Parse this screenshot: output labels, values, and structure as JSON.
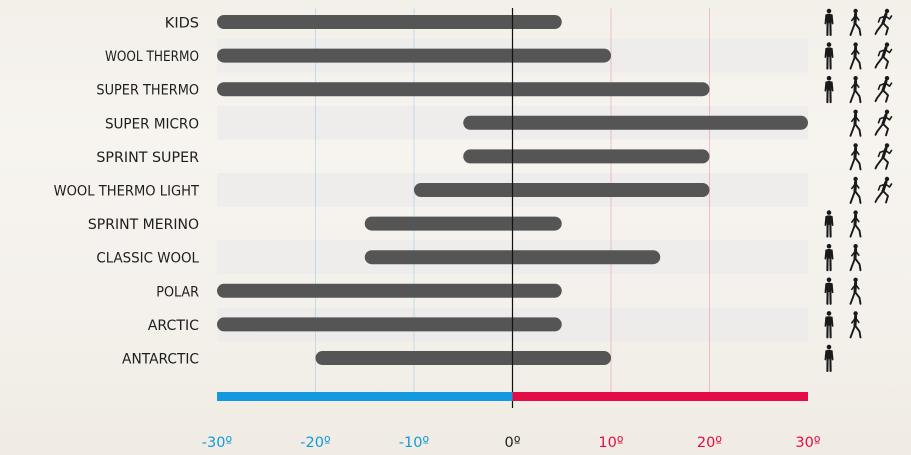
{
  "chart_data": {
    "type": "bar",
    "subtype": "floating-range",
    "categories": [
      "KIDS",
      "WOOL THERMO",
      "SUPER THERMO",
      "SUPER MICRO",
      "SPRINT SUPER",
      "WOOL THERMO LIGHT",
      "SPRINT MERINO",
      "CLASSIC WOOL",
      "POLAR",
      "ARCTIC",
      "ANTARCTIC"
    ],
    "ranges": [
      [
        -30,
        5
      ],
      [
        -30,
        10
      ],
      [
        -30,
        20
      ],
      [
        -5,
        30
      ],
      [
        -5,
        20
      ],
      [
        -10,
        20
      ],
      [
        -15,
        5
      ],
      [
        -15,
        15
      ],
      [
        -30,
        5
      ],
      [
        -30,
        5
      ],
      [
        -20,
        10
      ]
    ],
    "activities": [
      [
        "standing",
        "walking",
        "running"
      ],
      [
        "standing",
        "walking",
        "running"
      ],
      [
        "standing",
        "walking",
        "running"
      ],
      [
        "walking",
        "running"
      ],
      [
        "walking",
        "running"
      ],
      [
        "walking",
        "running"
      ],
      [
        "standing",
        "walking"
      ],
      [
        "standing",
        "walking"
      ],
      [
        "standing",
        "walking"
      ],
      [
        "standing",
        "walking"
      ],
      [
        "standing"
      ]
    ],
    "x_ticks": [
      "-30º",
      "-20º",
      "-10º",
      "0º",
      "10º",
      "20º",
      "30º"
    ],
    "x_tick_values": [
      -30,
      -20,
      -10,
      0,
      10,
      20,
      30
    ],
    "xlim": [
      -30,
      30
    ],
    "grid": true,
    "colors": {
      "bar": "#555555",
      "cold": "#139ade",
      "warm": "#e40c47",
      "row_band": "#ebebeb",
      "zero_line": "#111111",
      "icon": "#1a1a1a"
    }
  }
}
